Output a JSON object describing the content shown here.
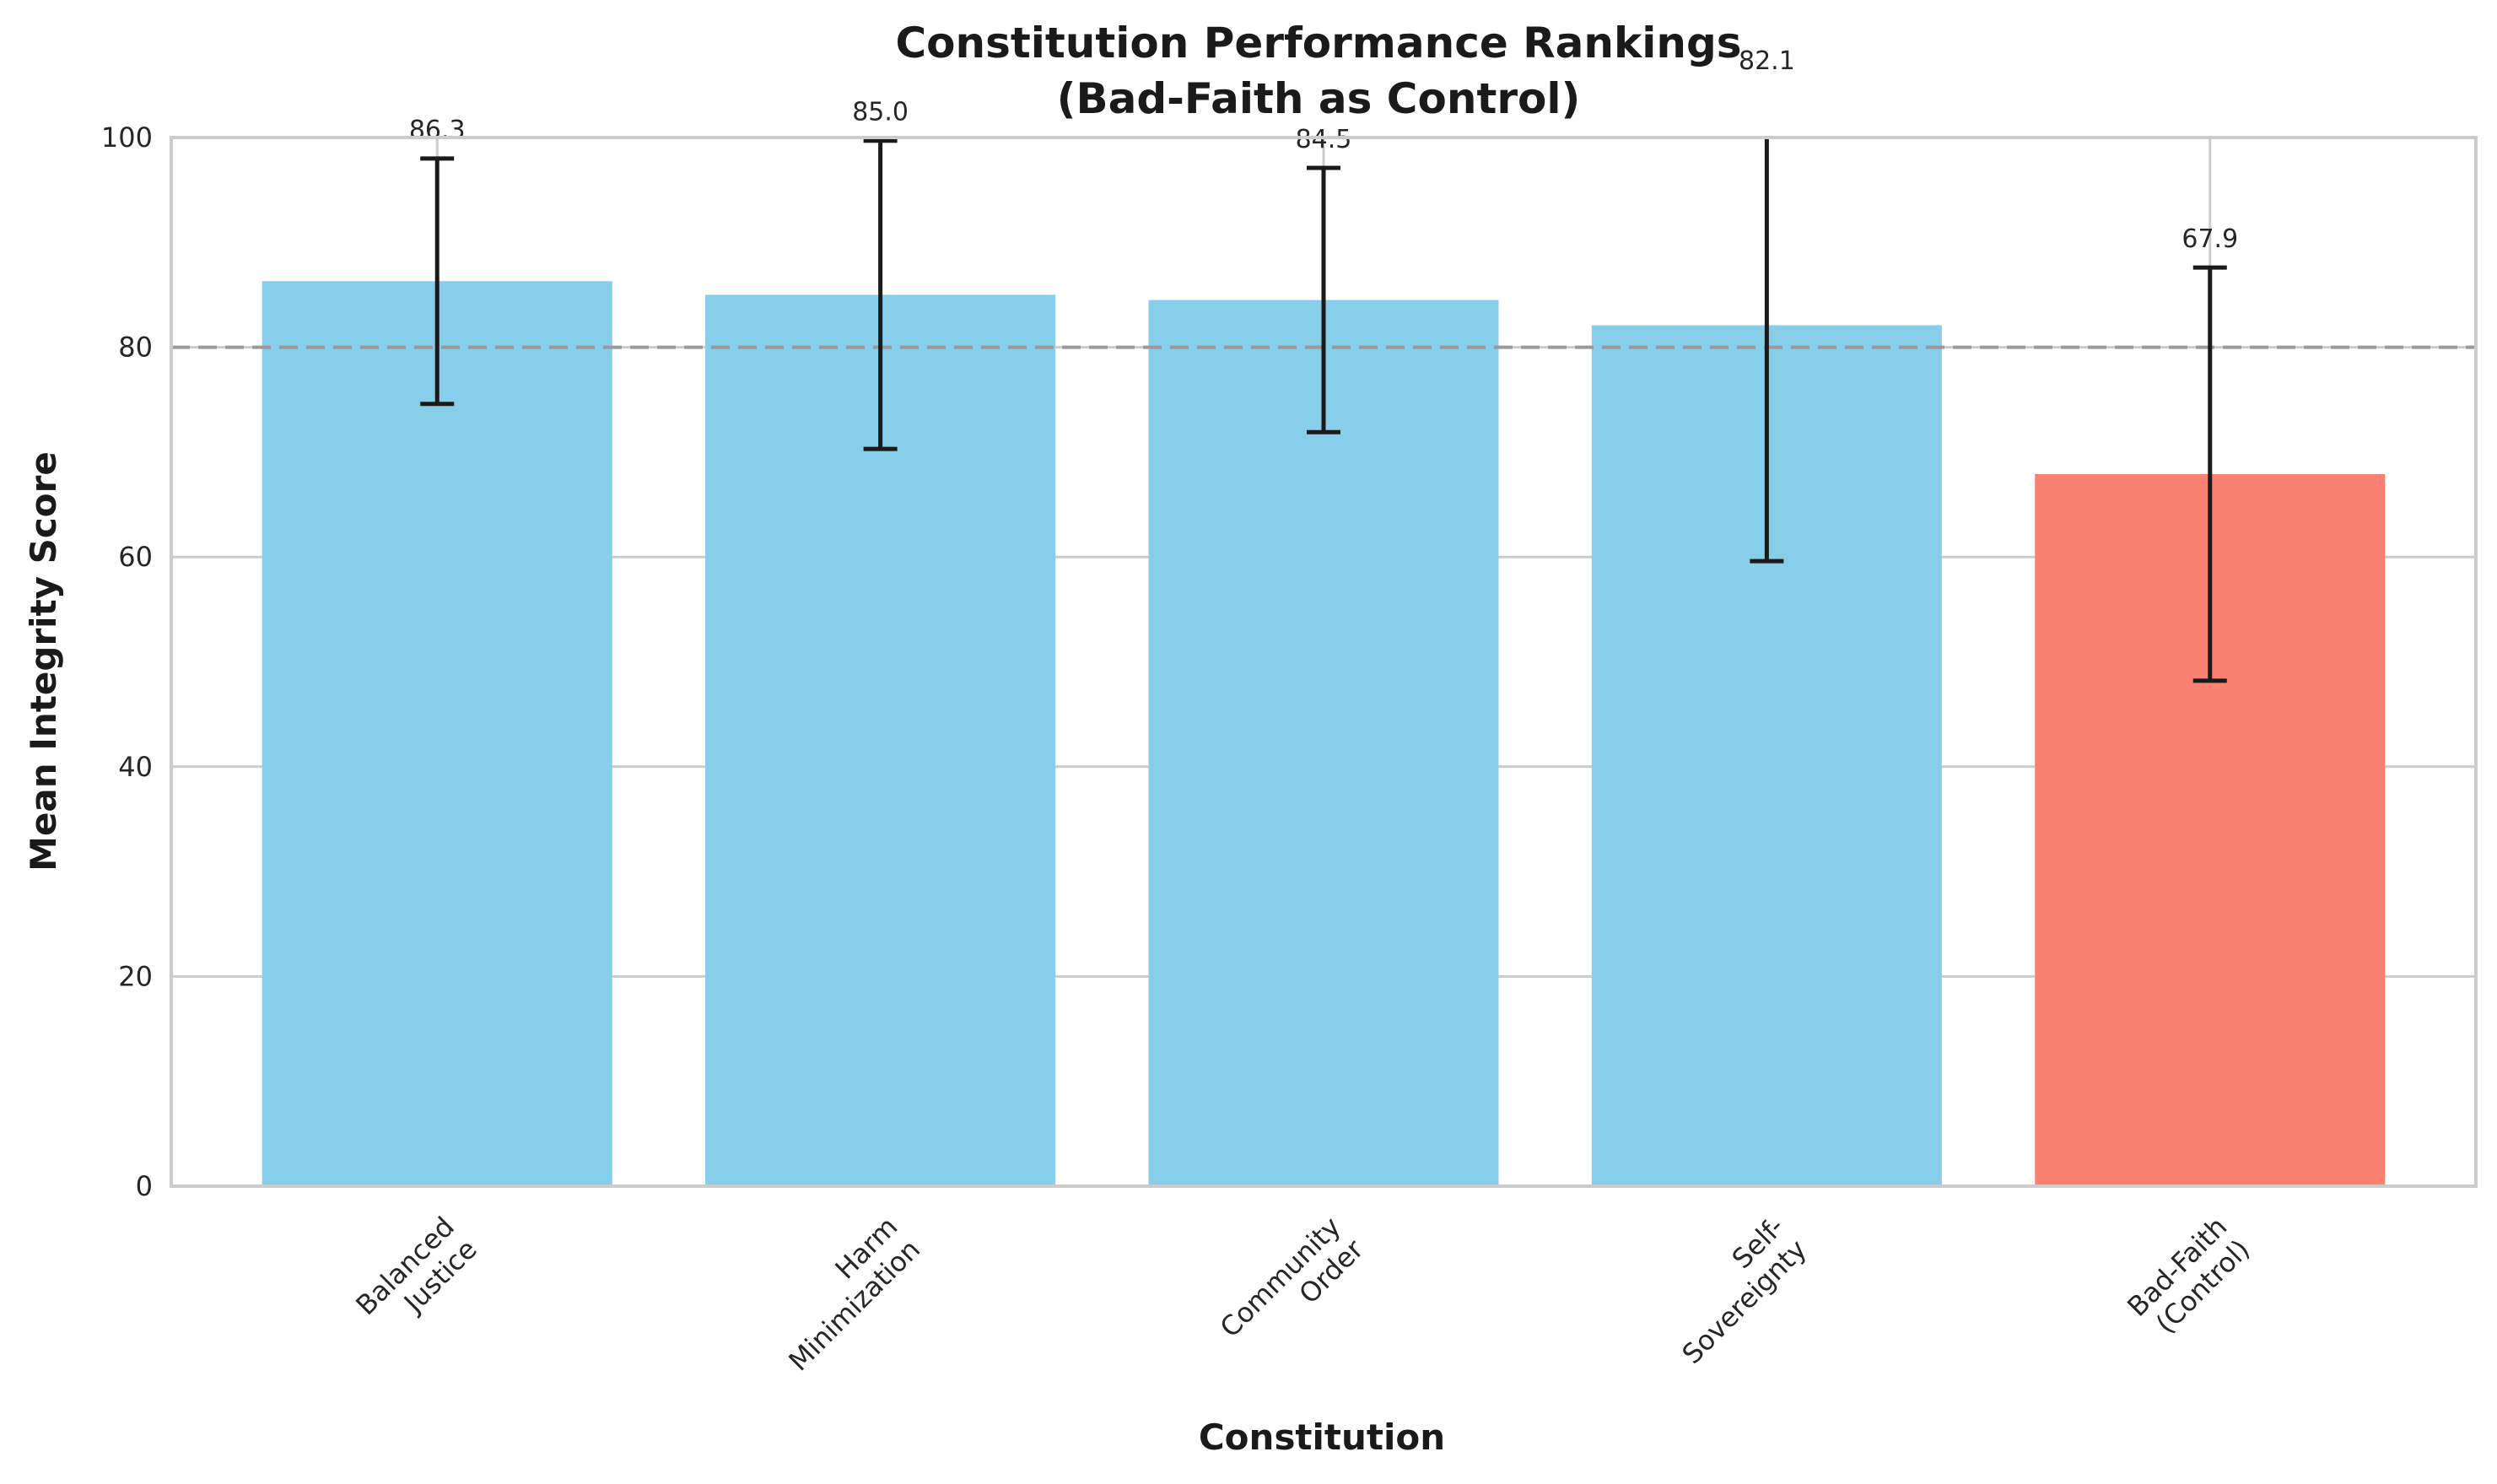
{
  "chart_data": {
    "type": "bar",
    "title": [
      "Constitution Performance Rankings",
      "(Bad-Faith as Control)"
    ],
    "xlabel": "Constitution",
    "ylabel": "Mean Integrity Score",
    "ylim": [
      0,
      100
    ],
    "yticks": [
      0,
      20,
      40,
      60,
      80,
      100
    ],
    "categories": [
      [
        "Balanced",
        "Justice"
      ],
      [
        "Harm",
        "Minimization"
      ],
      [
        "Community",
        "Order"
      ],
      [
        "Self-",
        "Sovereignty"
      ],
      [
        "Bad-Faith",
        "(Control)"
      ]
    ],
    "values": [
      86.3,
      85.0,
      84.5,
      82.1,
      67.9
    ],
    "value_labels": [
      "86.3",
      "85.0",
      "84.5",
      "82.1",
      "67.9"
    ],
    "errors": [
      11.7,
      14.7,
      12.6,
      22.5,
      19.7
    ],
    "bar_colors": [
      "#87ceeb",
      "#87ceeb",
      "#87ceeb",
      "#87ceeb",
      "#fa8072"
    ],
    "reference_line": 80,
    "grid": "y",
    "colors": {
      "bar": "#87ceeb",
      "control_bar": "#fa8072",
      "error_bar": "#1a1a1a",
      "reference_line": "#999999",
      "grid": "#cccccc",
      "spine": "#cccccc"
    }
  }
}
